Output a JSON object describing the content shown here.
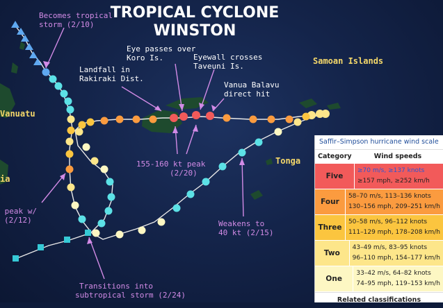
{
  "title": {
    "line1": "TROPICAL CYCLONE",
    "line2": "WINSTON"
  },
  "places": {
    "vanuatu": "Vanuatu",
    "samoan": "Samoan Islands",
    "tonga": "Tonga",
    "ia": "ia"
  },
  "annotations": {
    "becomes_tropical": [
      "Becomes tropical",
      "storm (2/10)"
    ],
    "eye_passes": [
      "Eye passes over",
      "Koro Is."
    ],
    "eyewall": [
      "Eyewall crosses",
      "Taveuni Is."
    ],
    "landfall": [
      "Landfall in",
      "Rakiraki Dist."
    ],
    "vanua": [
      "Vanua Balavu",
      "direct hit"
    ],
    "peak155": [
      "155-160 kt peak",
      "(2/20)"
    ],
    "peak_w": [
      " peak w/",
      "(2/12)"
    ],
    "weakens": [
      "Weakens to",
      "40 kt (2/15)"
    ],
    "transitions": [
      "Transitions into",
      "subtropical storm (2/24)"
    ]
  },
  "legend": {
    "title": "Saffir–Simpson hurricane wind scale",
    "col_category": "Category",
    "col_speeds": "Wind speeds",
    "rows": [
      {
        "cat": "Five",
        "color": "#f25a5a",
        "line1": "≥70 m/s, ≥137 knots",
        "line2": "≥157 mph, ≥252 km/h"
      },
      {
        "cat": "Four",
        "color": "#fb9b3f",
        "line1": "58–70 m/s, 113–136 knots",
        "line2": "130–156 mph, 209–251 km/h"
      },
      {
        "cat": "Three",
        "color": "#fbc53f",
        "line1": "50–58 m/s, 96–112 knots",
        "line2": "111–129 mph, 178–208 km/h"
      },
      {
        "cat": "Two",
        "color": "#fde68a",
        "line1": "43–49 m/s, 83–95 knots",
        "line2": "96–110 mph, 154–177 km/h"
      },
      {
        "cat": "One",
        "color": "#fdf7c3",
        "line1": "33–42 m/s, 64–82 knots",
        "line2": "74–95 mph, 119–153 km/h"
      }
    ],
    "related": "Related classifications"
  },
  "colors": {
    "background": "#14244a",
    "cat5": "#f25a5a",
    "cat4": "#fb9b3f",
    "cat3": "#fbc53f",
    "cat2": "#fde68a",
    "cat1": "#fdf7c3",
    "tropical_storm": "#5ce1e6",
    "depression": "#5fa8f0",
    "subtropical": "#36c9d6",
    "annotation": "#d28be6",
    "place": "#f5d86a"
  }
}
